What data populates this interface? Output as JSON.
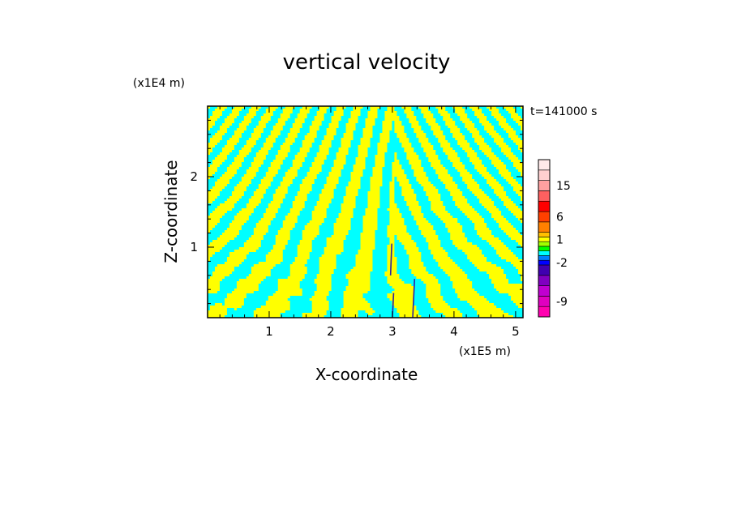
{
  "chart_data": {
    "type": "heatmap",
    "title": "vertical velocity",
    "xlabel": "X-coordinate",
    "ylabel": "Z-coordinate",
    "x_scale_label": "(x1E5 m)",
    "y_scale_label": "(x1E4 m)",
    "time_label": "t=141000 s",
    "xlim": [
      0,
      5.12
    ],
    "ylim": [
      0,
      3.0
    ],
    "x_ticks": [
      "1",
      "2",
      "3",
      "4",
      "5"
    ],
    "y_ticks": [
      "1",
      "2"
    ],
    "x_tick_values": [
      1,
      2,
      3,
      4,
      5
    ],
    "y_tick_values": [
      1,
      2
    ],
    "field_colors": {
      "positive": "#ffff00",
      "negative": "#00ffff",
      "strong_negative": "#3020a0"
    },
    "colorbar": {
      "levels": [
        {
          "value": -12,
          "color": "#ff00b0"
        },
        {
          "value": -9,
          "color": "#e000c0"
        },
        {
          "value": -6,
          "color": "#c000d0"
        },
        {
          "value": -4,
          "color": "#8000c0"
        },
        {
          "value": -3,
          "color": "#4000b0"
        },
        {
          "value": -2,
          "color": "#0000ff"
        },
        {
          "value": -1.5,
          "color": "#0080ff"
        },
        {
          "value": -1,
          "color": "#00ffff"
        },
        {
          "value": 0,
          "color": "#00ff00"
        },
        {
          "value": 0.5,
          "color": "#a0ff00"
        },
        {
          "value": 1,
          "color": "#ffff00"
        },
        {
          "value": 2,
          "color": "#ffc000"
        },
        {
          "value": 4,
          "color": "#ff8000"
        },
        {
          "value": 6,
          "color": "#ff4000"
        },
        {
          "value": 9,
          "color": "#ff0000"
        },
        {
          "value": 12,
          "color": "#ff6060"
        },
        {
          "value": 15,
          "color": "#ffa0a0"
        },
        {
          "value": 18,
          "color": "#ffd0d0"
        },
        {
          "value": 21,
          "color": "#ffeaea"
        }
      ],
      "labels": [
        "15",
        "6",
        "1",
        "-2",
        "-9"
      ],
      "label_values": [
        15,
        6,
        1,
        -2,
        -9
      ]
    }
  }
}
